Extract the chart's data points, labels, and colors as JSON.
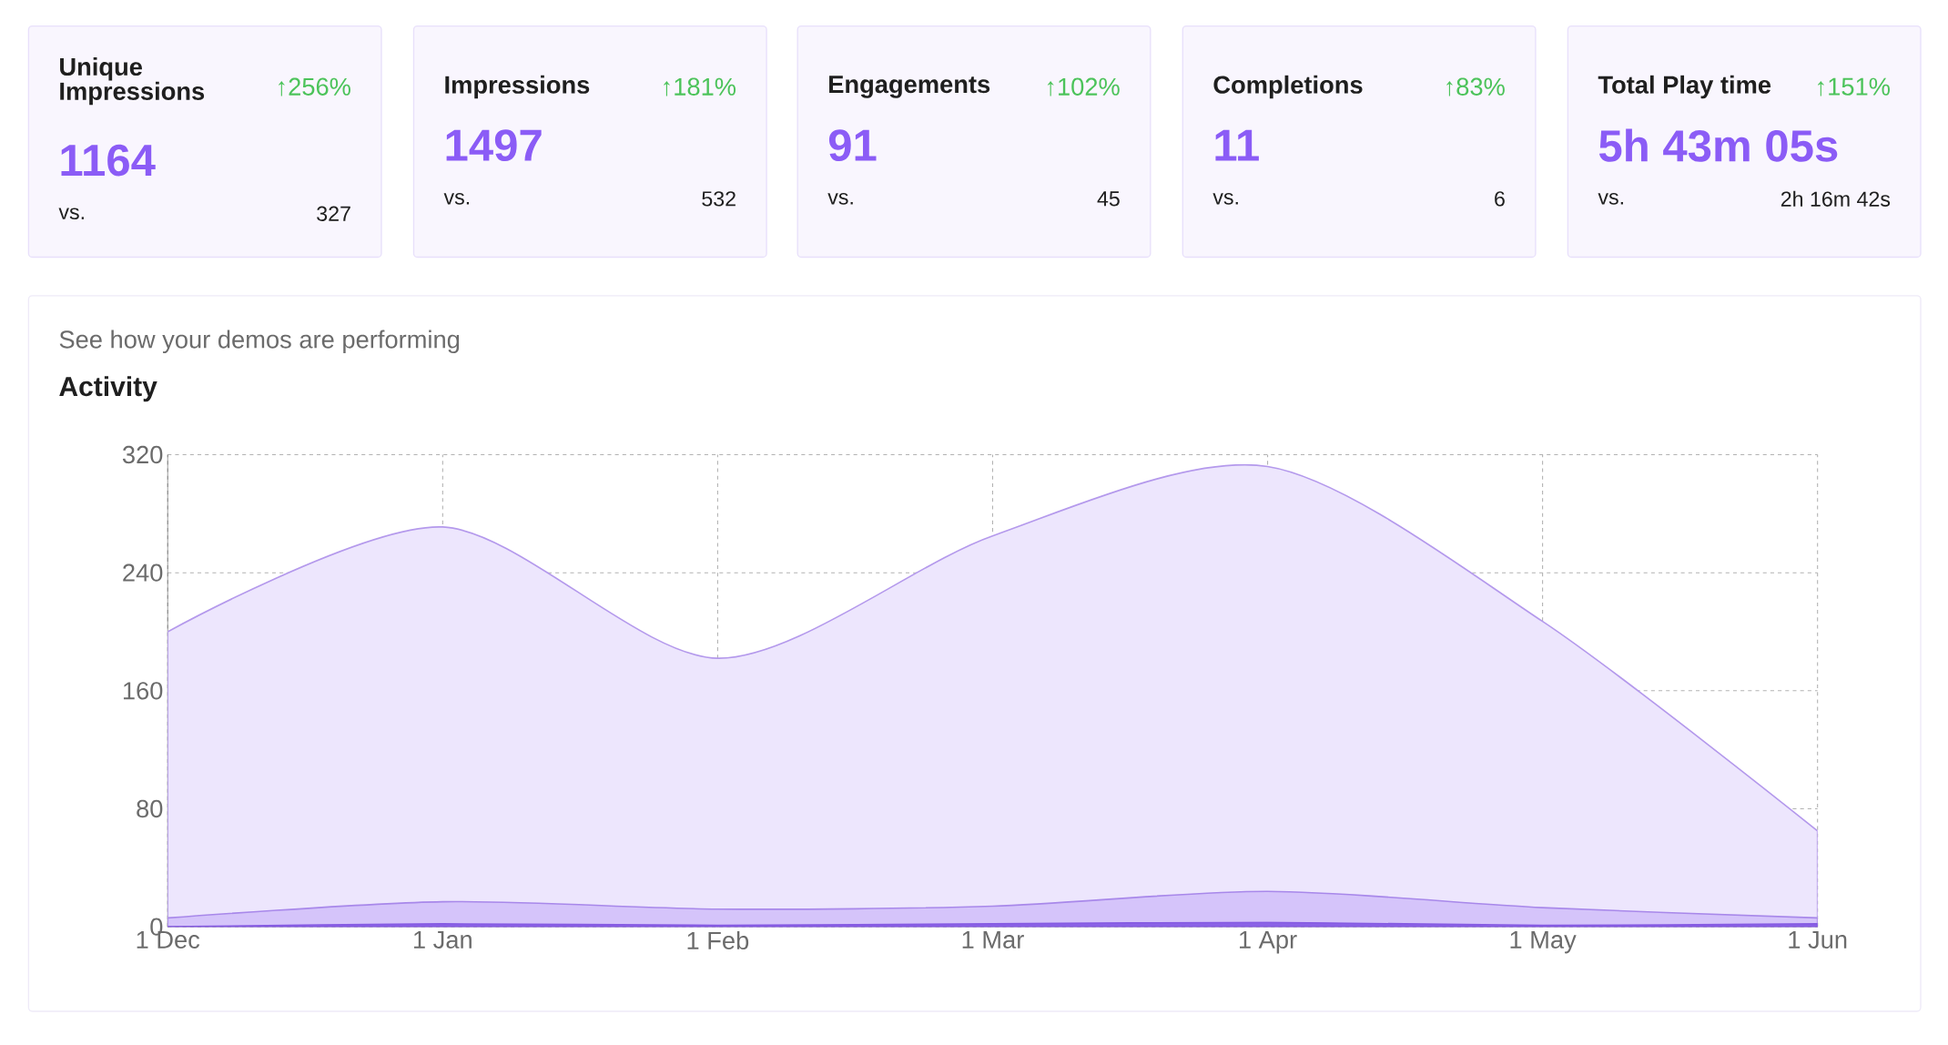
{
  "chart_data": [
    {
      "type": "other",
      "title": "Unique Impressions",
      "annotations": [
        "↑256%",
        "1164",
        "vs.",
        "327"
      ]
    },
    {
      "type": "other",
      "title": "Impressions",
      "annotations": [
        "↑181%",
        "1497",
        "vs.",
        "532"
      ]
    },
    {
      "type": "other",
      "title": "Engagements",
      "annotations": [
        "↑102%",
        "91",
        "vs.",
        "45"
      ]
    },
    {
      "type": "other",
      "title": "Completions",
      "annotations": [
        "↑83%",
        "11",
        "vs.",
        "6"
      ]
    },
    {
      "type": "other",
      "title": "Total Play time",
      "annotations": [
        "↑151%",
        "5h 43m 05s",
        "vs.",
        "2h 16m 42s"
      ]
    },
    {
      "type": "area",
      "subtitle": "See how your demos are performing",
      "title": "Activity",
      "categories": [
        "1 Dec",
        "1 Jan",
        "1 Feb",
        "1 Mar",
        "1 Apr",
        "1 May",
        "1 Jun"
      ],
      "series": [
        {
          "color": "#ede6fd",
          "values": [
            200,
            271,
            182,
            265,
            312,
            207,
            65
          ]
        },
        {
          "color": "#d5c4fa",
          "values": [
            6,
            17,
            12,
            14,
            24,
            13,
            6
          ]
        },
        {
          "color": "#8b63e6",
          "values": [
            0,
            2,
            1,
            2,
            3,
            1,
            2
          ]
        }
      ],
      "ylim": [
        0,
        320
      ],
      "yticks": [
        0,
        80,
        160,
        240,
        320
      ],
      "grid": true
    }
  ]
}
